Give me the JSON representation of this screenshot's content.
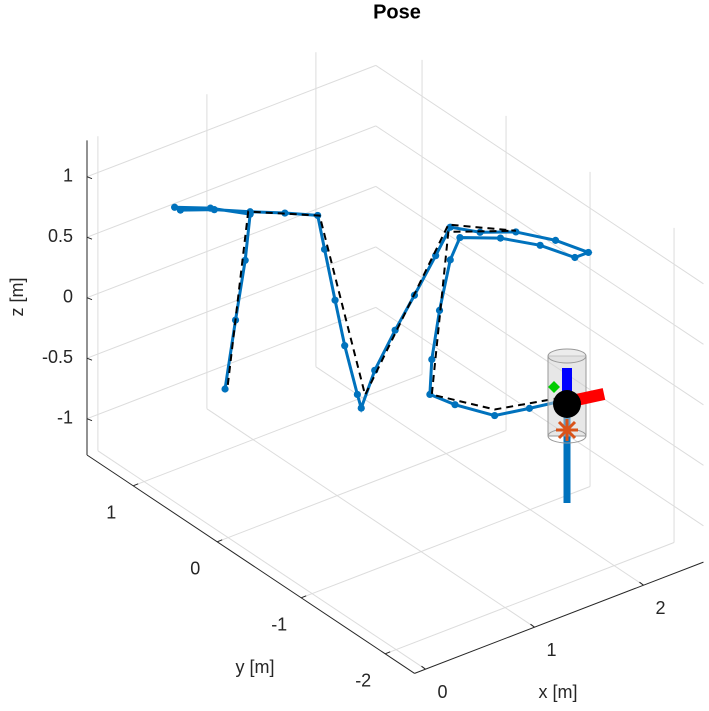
{
  "chart_data": {
    "type": "scatter3d",
    "title": "Pose",
    "xlabel": "x [m]",
    "ylabel": "y [m]",
    "zlabel": "z [m]",
    "xlim": [
      -0.1,
      2.55
    ],
    "ylim": [
      -2.35,
      1.55
    ],
    "zlim": [
      -1.3,
      1.3
    ],
    "xticks": [
      0,
      1,
      2
    ],
    "yticks": [
      -2,
      -1,
      0,
      1
    ],
    "zticks": [
      -1,
      -0.5,
      0,
      0.5,
      1
    ],
    "grid": true,
    "series": [
      {
        "color": "#0072BD",
        "style": "dots",
        "x": [
          0.55,
          0.6,
          0.65,
          0.68,
          0.47,
          0.28,
          0.31,
          0.49,
          0.68,
          0.86,
          1.03,
          1.07,
          1.12,
          1.17,
          1.24,
          1.26,
          1.33,
          1.44,
          1.54,
          1.65,
          1.73,
          1.88,
          2.07,
          2.28,
          2.45,
          2.38,
          2.2,
          1.99,
          1.78,
          1.73,
          1.67,
          1.63,
          1.62,
          1.75,
          1.96,
          2.14,
          2.34
        ],
        "y": [
          0.75,
          0.69,
          0.64,
          0.62,
          0.82,
          1.0,
          0.97,
          0.8,
          0.62,
          0.44,
          0.27,
          0.24,
          0.18,
          0.13,
          0.07,
          0.05,
          -0.02,
          -0.12,
          -0.22,
          -0.33,
          -0.4,
          -0.56,
          -0.74,
          -0.94,
          -1.11,
          -1.04,
          -0.86,
          -0.66,
          -0.45,
          -0.4,
          -0.35,
          -0.31,
          -0.3,
          -0.43,
          -0.63,
          -0.81,
          -1.0
        ],
        "z": [
          -0.61,
          -0.03,
          0.47,
          0.85,
          0.88,
          0.87,
          0.85,
          0.87,
          0.87,
          0.88,
          0.88,
          0.6,
          0.19,
          -0.18,
          -0.58,
          -0.69,
          -0.37,
          -0.03,
          0.27,
          0.61,
          0.85,
          0.83,
          0.85,
          0.8,
          0.72,
          0.67,
          0.75,
          0.79,
          0.77,
          0.58,
          0.16,
          -0.25,
          -0.54,
          -0.61,
          -0.68,
          -0.6,
          -0.51
        ]
      },
      {
        "color": "#000000",
        "style": "dashed",
        "x": [
          0.56,
          0.67,
          1.04,
          1.28,
          1.72,
          2.07,
          1.72,
          1.63,
          1.96,
          2.3
        ],
        "y": [
          0.73,
          0.63,
          0.26,
          0.03,
          -0.39,
          -0.74,
          -0.39,
          -0.31,
          -0.63,
          -0.96
        ],
        "z": [
          -0.57,
          0.87,
          0.88,
          -0.58,
          0.87,
          0.86,
          0.81,
          -0.54,
          -0.63,
          -0.5
        ]
      }
    ]
  }
}
